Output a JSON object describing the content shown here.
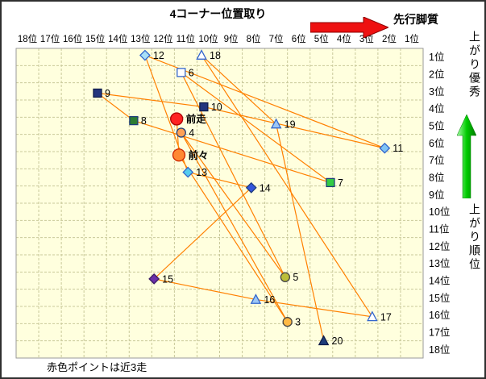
{
  "header": {
    "title": "4コーナー位置取り",
    "pace_arrow_label": "先行脚質"
  },
  "right_panel": {
    "top_label": "上がり優秀",
    "bottom_label": "上がり順位"
  },
  "footer": {
    "note": "赤色ポイントは近3走"
  },
  "colors": {
    "plot_bg": "#FFFFDE",
    "grid": "#C9C99A",
    "plot_border": "#999999",
    "line": "#FF8000",
    "red_arrow": "#EE1111",
    "green_arrow_light": "#AAFFAA",
    "green_arrow": "#00CC00",
    "green_arrow_dark": "#007700"
  },
  "chart_data": {
    "type": "scatter",
    "title": "4コーナー位置取り",
    "x_axis": {
      "tick_labels": [
        "18位",
        "17位",
        "16位",
        "15位",
        "14位",
        "13位",
        "12位",
        "11位",
        "10位",
        "9位",
        "8位",
        "7位",
        "6位",
        "5位",
        "4位",
        "3位",
        "2位",
        "1位"
      ]
    },
    "y_axis": {
      "tick_labels": [
        "1位",
        "2位",
        "3位",
        "4位",
        "5位",
        "6位",
        "7位",
        "8位",
        "9位",
        "10位",
        "11位",
        "12位",
        "13位",
        "14位",
        "15位",
        "16位",
        "17位",
        "18位"
      ]
    },
    "connected_in_listed_order": true,
    "points": [
      {
        "label": "前走",
        "x": 11.4,
        "y": 4.6,
        "shape": "circle",
        "fill": "#FF2222",
        "stroke": "#AA0000",
        "size": 7.5,
        "bold": true
      },
      {
        "label": "前々",
        "x": 11.3,
        "y": 6.7,
        "shape": "circle",
        "fill": "#FF8833",
        "stroke": "#CC2200",
        "size": 7.5,
        "bold": true
      },
      {
        "label": "3",
        "x": 6.5,
        "y": 16.4,
        "shape": "circle",
        "fill": "#FFB944",
        "stroke": "#444444",
        "size": 5.5
      },
      {
        "label": "4",
        "x": 11.2,
        "y": 5.4,
        "shape": "circle",
        "fill": "#FFA055",
        "stroke": "#1F3D7A",
        "size": 5.5
      },
      {
        "label": "5",
        "x": 6.6,
        "y": 13.8,
        "shape": "circle",
        "fill": "#BCBE3A",
        "stroke": "#444444",
        "size": 5.5
      },
      {
        "label": "6",
        "x": 11.2,
        "y": 1.9,
        "shape": "square",
        "fill": "#FFFFFF",
        "stroke": "#3366CC",
        "size": 5
      },
      {
        "label": "7",
        "x": 4.6,
        "y": 8.3,
        "shape": "square",
        "fill": "#33CC44",
        "stroke": "#1F3D7A",
        "size": 5
      },
      {
        "label": "8",
        "x": 13.3,
        "y": 4.7,
        "shape": "square",
        "fill": "#2E7D32",
        "stroke": "#1F3D7A",
        "size": 5
      },
      {
        "label": "9",
        "x": 14.9,
        "y": 3.1,
        "shape": "square",
        "fill": "#24357D",
        "stroke": "#101C4A",
        "size": 5
      },
      {
        "label": "10",
        "x": 10.2,
        "y": 3.9,
        "shape": "square",
        "fill": "#24357D",
        "stroke": "#101C4A",
        "size": 5
      },
      {
        "label": "11",
        "x": 2.2,
        "y": 6.3,
        "shape": "diamond",
        "fill": "#7FC4F5",
        "stroke": "#3366CC",
        "size": 6
      },
      {
        "label": "12",
        "x": 12.8,
        "y": 0.9,
        "shape": "diamond",
        "fill": "#A8DFF7",
        "stroke": "#3366CC",
        "size": 6
      },
      {
        "label": "13",
        "x": 10.9,
        "y": 7.7,
        "shape": "diamond",
        "fill": "#55CCEE",
        "stroke": "#3366CC",
        "size": 6
      },
      {
        "label": "14",
        "x": 8.1,
        "y": 8.6,
        "shape": "diamond",
        "fill": "#3355DD",
        "stroke": "#1F3D7A",
        "size": 6
      },
      {
        "label": "15",
        "x": 12.4,
        "y": 13.9,
        "shape": "diamond",
        "fill": "#6A2FA8",
        "stroke": "#3A1A66",
        "size": 6
      },
      {
        "label": "16",
        "x": 7.9,
        "y": 15.1,
        "shape": "triangle",
        "fill": "#9CC6F5",
        "stroke": "#3366CC",
        "size": 6
      },
      {
        "label": "17",
        "x": 2.75,
        "y": 16.1,
        "shape": "triangle",
        "fill": "#FFFFFF",
        "stroke": "#3366CC",
        "size": 6
      },
      {
        "label": "18",
        "x": 10.3,
        "y": 0.9,
        "shape": "triangle",
        "fill": "#FFFFFF",
        "stroke": "#3366CC",
        "size": 6
      },
      {
        "label": "19",
        "x": 7.0,
        "y": 4.9,
        "shape": "triangle",
        "fill": "#9CC6F5",
        "stroke": "#3366CC",
        "size": 6
      },
      {
        "label": "20",
        "x": 4.9,
        "y": 17.5,
        "shape": "triangle",
        "fill": "#1F3D7A",
        "stroke": "#101C4A",
        "size": 6
      }
    ]
  }
}
